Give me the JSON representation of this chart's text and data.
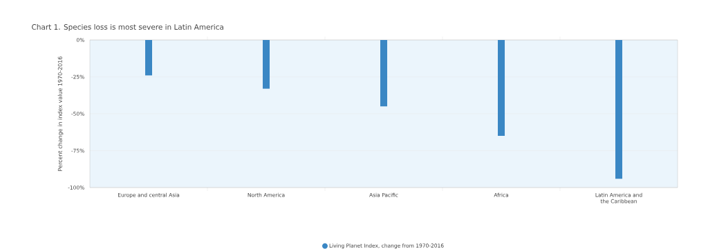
{
  "chart_data": {
    "type": "bar",
    "title": "Chart 1. Species loss is most severe in Latin America",
    "ylabel": "Percent change in index value 1970-2016",
    "categories": [
      "Europe and central Asia",
      "North America",
      "Asia Pacific",
      "Africa",
      "Latin America and the Caribbean"
    ],
    "series": [
      {
        "name": "Living Planet Index, change from 1970-2016",
        "color": "#3a87c4",
        "values": [
          -24,
          -33,
          -45,
          -65,
          -94
        ]
      }
    ],
    "ylim": [
      -100,
      0
    ],
    "yticks": [
      {
        "value": 0,
        "label": "0%"
      },
      {
        "value": -25,
        "label": "-25%"
      },
      {
        "value": -50,
        "label": "-50%"
      },
      {
        "value": -75,
        "label": "-75%"
      },
      {
        "value": -100,
        "label": "-100%"
      }
    ],
    "grid": "y",
    "legend": "bottom",
    "marker": "circle"
  }
}
